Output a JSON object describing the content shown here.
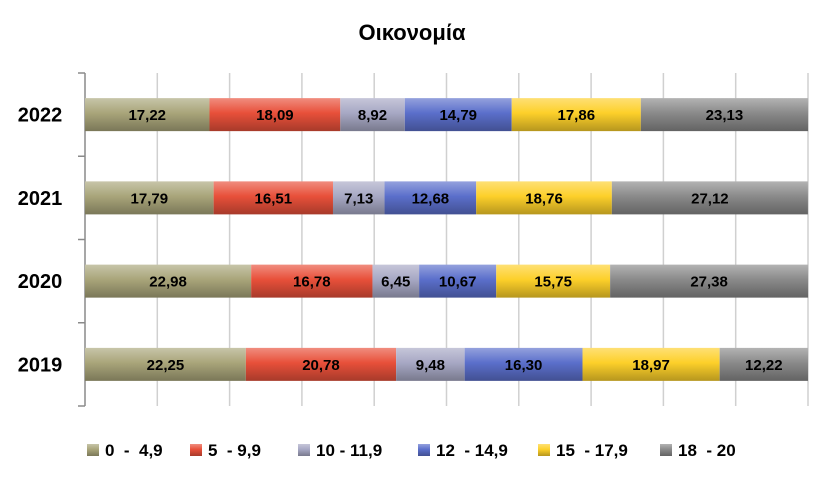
{
  "chart_data": {
    "type": "bar",
    "orientation": "horizontal",
    "stacked": true,
    "title": "Οικονομία",
    "xlabel": "",
    "ylabel": "",
    "xlim": [
      0,
      100
    ],
    "grid": true,
    "legend_position": "bottom",
    "categories": [
      "2022",
      "2021",
      "2020",
      "2019"
    ],
    "series": [
      {
        "name": "0  -  4,9",
        "color": "#a9a57a",
        "values": [
          17.22,
          17.79,
          22.98,
          22.25
        ],
        "labels": [
          "17,22",
          "17,79",
          "22,98",
          "22,25"
        ]
      },
      {
        "name": "5  - 9,9",
        "color": "#e8503a",
        "values": [
          18.09,
          16.51,
          16.78,
          20.78
        ],
        "labels": [
          "18,09",
          "16,51",
          "16,78",
          "20,78"
        ]
      },
      {
        "name": "10 - 11,9",
        "color": "#a7a8c4",
        "values": [
          8.92,
          7.13,
          6.45,
          9.48
        ],
        "labels": [
          "8,92",
          "7,13",
          "6,45",
          "9,48"
        ]
      },
      {
        "name": "12  - 14,9",
        "color": "#5b6fcb",
        "values": [
          14.79,
          12.68,
          10.67,
          16.3
        ],
        "labels": [
          "14,79",
          "12,68",
          "10,67",
          "16,30"
        ]
      },
      {
        "name": "15  - 17,9",
        "color": "#fdd02a",
        "values": [
          17.86,
          18.76,
          15.75,
          18.97
        ],
        "labels": [
          "17,86",
          "18,76",
          "15,75",
          "18,97"
        ]
      },
      {
        "name": "18  - 20",
        "color": "#8a8a8a",
        "values": [
          23.13,
          27.12,
          27.38,
          12.22
        ],
        "labels": [
          "23,13",
          "27,12",
          "27,38",
          "12,22"
        ]
      }
    ]
  }
}
